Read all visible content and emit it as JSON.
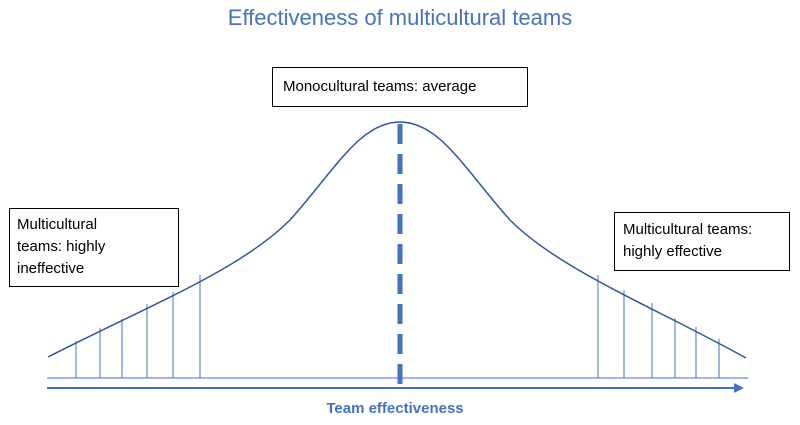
{
  "title": "Effectiveness of multicultural teams",
  "labels": {
    "center": "Monocultural teams: average",
    "left": "Multicultural\nteams: highly\nineffective",
    "right": "Multicultural teams:\nhighly effective"
  },
  "axis_label": "Team effectiveness",
  "colors": {
    "accent": "#4472c4",
    "curve": "#2f55a4",
    "box_border": "#000000"
  }
}
